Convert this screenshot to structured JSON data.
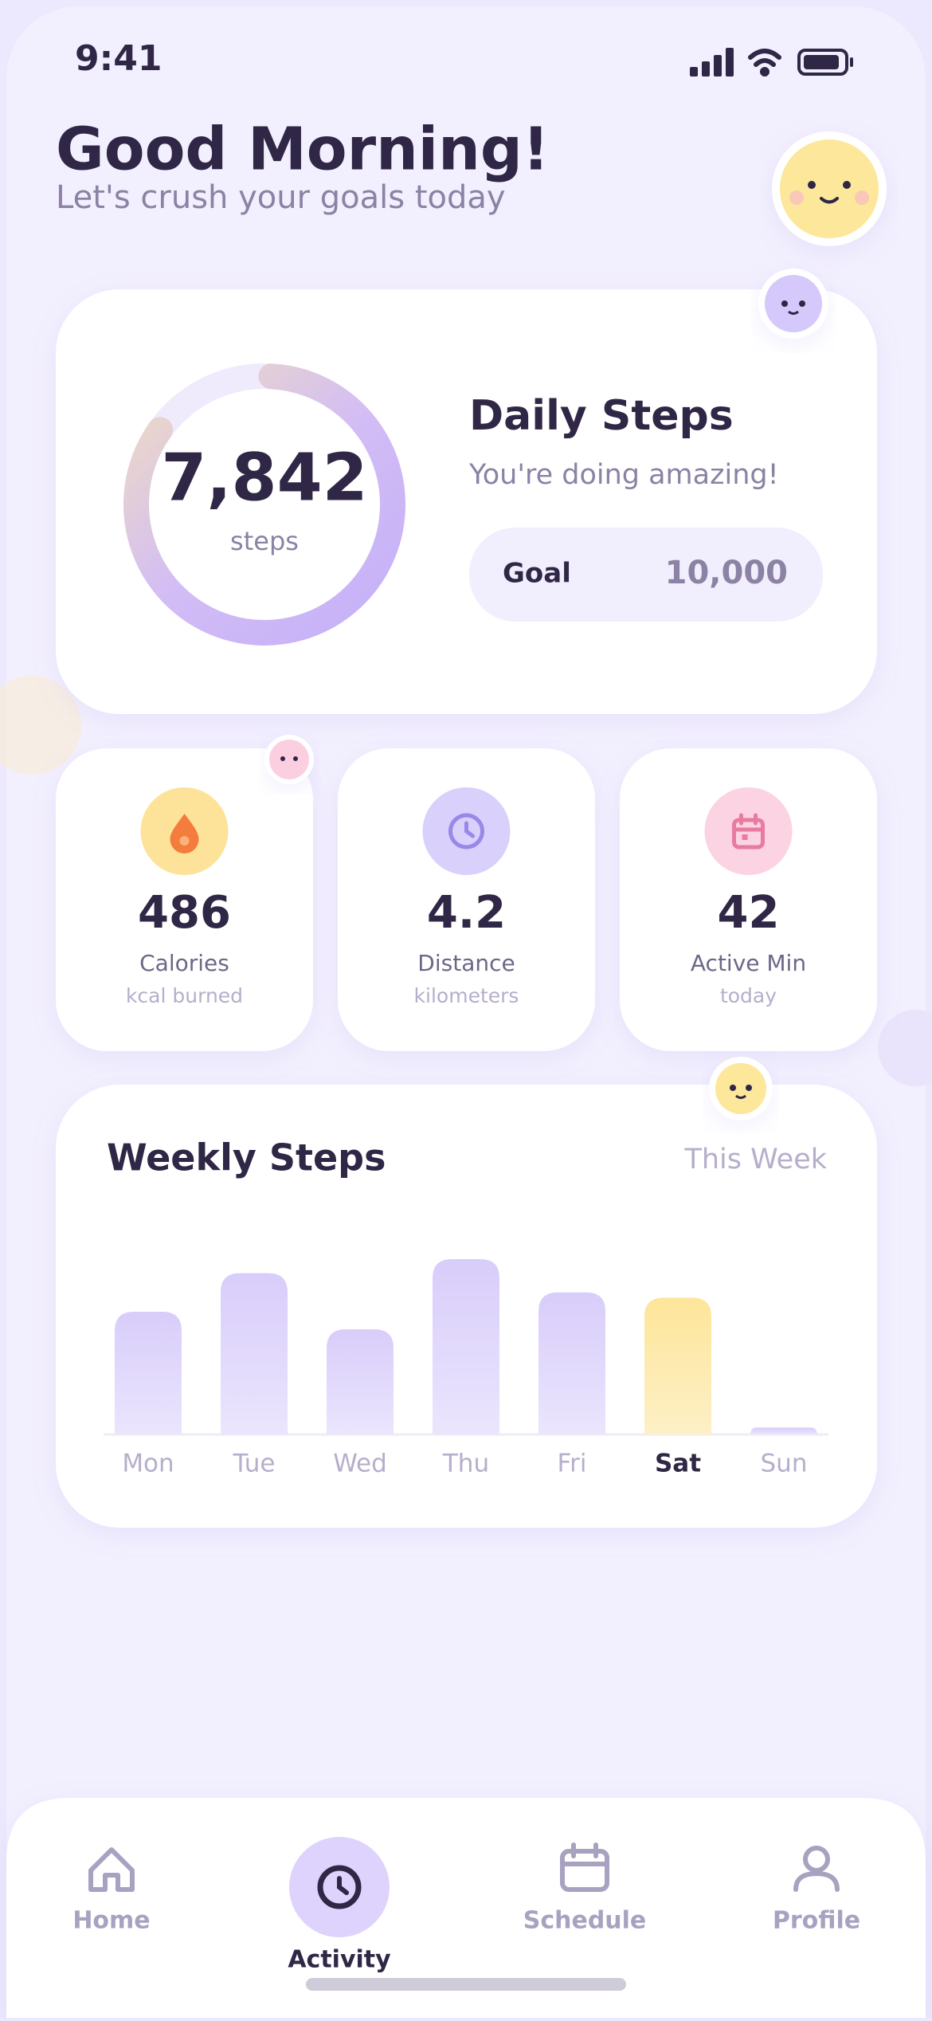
{
  "status_bar": {
    "time": "9:41"
  },
  "header": {
    "title": "Good Morning!",
    "subtitle": "Let's crush your goals today"
  },
  "daily_steps": {
    "count": "7,842",
    "unit": "steps",
    "title": "Daily Steps",
    "message": "You're doing amazing!",
    "goal_label": "Goal",
    "goal_value": "10,000"
  },
  "stats": [
    {
      "value": 486,
      "label": "Calories",
      "sub": "kcal burned"
    },
    {
      "value": 4.2,
      "label": "Distance",
      "sub": "kilometers"
    },
    {
      "value": 42,
      "label": "Active Min",
      "sub": "today"
    }
  ],
  "weekly": {
    "title": "Weekly Steps",
    "period": "This Week",
    "days": [
      "Mon",
      "Tue",
      "Wed",
      "Thu",
      "Fri",
      "Sat",
      "Sun"
    ],
    "values": [
      7000,
      9200,
      6000,
      10000,
      8100,
      7800,
      400
    ],
    "highlight": 5
  },
  "nav": {
    "items": [
      "Home",
      "Activity",
      "Schedule",
      "Profile"
    ],
    "active": 1
  }
}
